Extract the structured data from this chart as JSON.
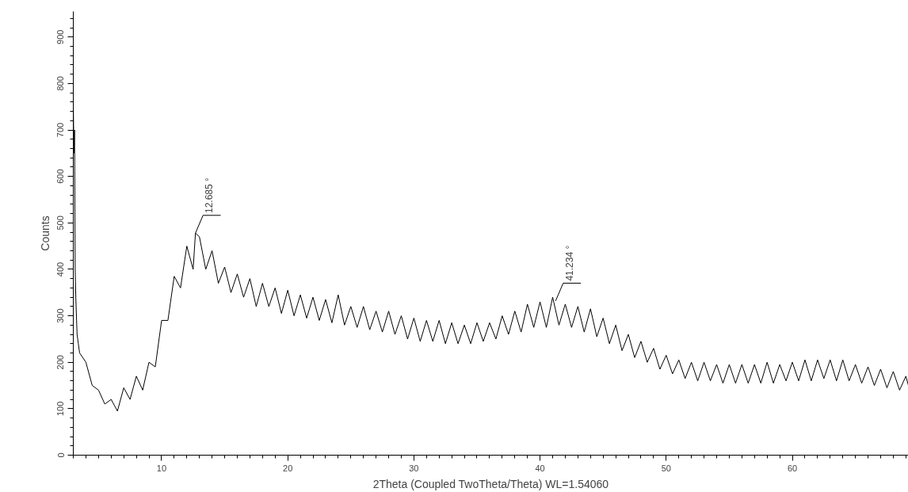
{
  "chart_data": {
    "type": "line",
    "xlabel": "2Theta (Coupled TwoTheta/Theta) WL=1.54060",
    "ylabel": "Counts",
    "xlim": [
      3,
      69.2
    ],
    "ylim": [
      0,
      955
    ],
    "xticks": [
      10,
      20,
      30,
      40,
      50,
      60
    ],
    "yticks": [
      0,
      100,
      200,
      300,
      400,
      500,
      600,
      700,
      800,
      900
    ],
    "grid": false,
    "marker": "none",
    "line_style": "solid",
    "annotations": [
      {
        "text": "12.685 °",
        "x": 12.685,
        "y": 478
      },
      {
        "text": "41.234 °",
        "x": 41.234,
        "y": 332
      }
    ],
    "series": [
      {
        "color": "#000000",
        "x": [
          3.0,
          3.05,
          3.1,
          3.15,
          3.2,
          3.3,
          3.4,
          3.5,
          4.0,
          4.5,
          5.0,
          5.5,
          6.0,
          6.5,
          7.0,
          7.5,
          8.0,
          8.5,
          9.0,
          9.5,
          10.0,
          10.5,
          11.0,
          11.5,
          12.0,
          12.5,
          12.685,
          13.0,
          13.5,
          14.0,
          14.5,
          15.0,
          15.5,
          16.0,
          16.5,
          17.0,
          17.5,
          18.0,
          18.5,
          19.0,
          19.5,
          20.0,
          20.5,
          21.0,
          21.5,
          22.0,
          22.5,
          23.0,
          23.5,
          24.0,
          24.5,
          25.0,
          25.5,
          26.0,
          26.5,
          27.0,
          27.5,
          28.0,
          28.5,
          29.0,
          29.5,
          30.0,
          30.5,
          31.0,
          31.5,
          32.0,
          32.5,
          33.0,
          33.5,
          34.0,
          34.5,
          35.0,
          35.5,
          36.0,
          36.5,
          37.0,
          37.5,
          38.0,
          38.5,
          39.0,
          39.5,
          40.0,
          40.5,
          41.0,
          41.5,
          42.0,
          42.5,
          43.0,
          43.5,
          44.0,
          44.5,
          45.0,
          45.5,
          46.0,
          46.5,
          47.0,
          47.5,
          48.0,
          48.5,
          49.0,
          49.5,
          50.0,
          50.5,
          51.0,
          51.5,
          52.0,
          52.5,
          53.0,
          53.5,
          54.0,
          54.5,
          55.0,
          55.5,
          56.0,
          56.5,
          57.0,
          57.5,
          58.0,
          58.5,
          59.0,
          59.5,
          60.0,
          60.5,
          61.0,
          61.5,
          62.0,
          62.5,
          63.0,
          63.5,
          64.0,
          64.5,
          65.0,
          65.5,
          66.0,
          66.5,
          67.0,
          67.5,
          68.0,
          68.5,
          69.0,
          69.2
        ],
        "values": [
          760,
          650,
          700,
          400,
          340,
          260,
          240,
          220,
          200,
          150,
          140,
          110,
          120,
          95,
          145,
          120,
          170,
          140,
          200,
          190,
          290,
          290,
          385,
          360,
          450,
          400,
          478,
          470,
          400,
          440,
          370,
          405,
          350,
          390,
          340,
          380,
          320,
          370,
          320,
          360,
          305,
          355,
          300,
          345,
          295,
          340,
          290,
          335,
          285,
          345,
          280,
          320,
          275,
          320,
          270,
          310,
          265,
          310,
          260,
          300,
          250,
          295,
          245,
          290,
          245,
          290,
          240,
          285,
          240,
          280,
          240,
          285,
          245,
          285,
          250,
          300,
          260,
          310,
          265,
          325,
          275,
          330,
          275,
          340,
          280,
          325,
          275,
          320,
          265,
          315,
          255,
          295,
          240,
          280,
          225,
          260,
          210,
          245,
          200,
          230,
          185,
          215,
          175,
          205,
          165,
          200,
          160,
          200,
          160,
          195,
          155,
          195,
          155,
          195,
          155,
          195,
          155,
          200,
          155,
          195,
          160,
          200,
          160,
          205,
          160,
          205,
          165,
          205,
          160,
          205,
          160,
          195,
          155,
          190,
          150,
          185,
          145,
          180,
          140,
          170,
          150
        ]
      }
    ]
  }
}
